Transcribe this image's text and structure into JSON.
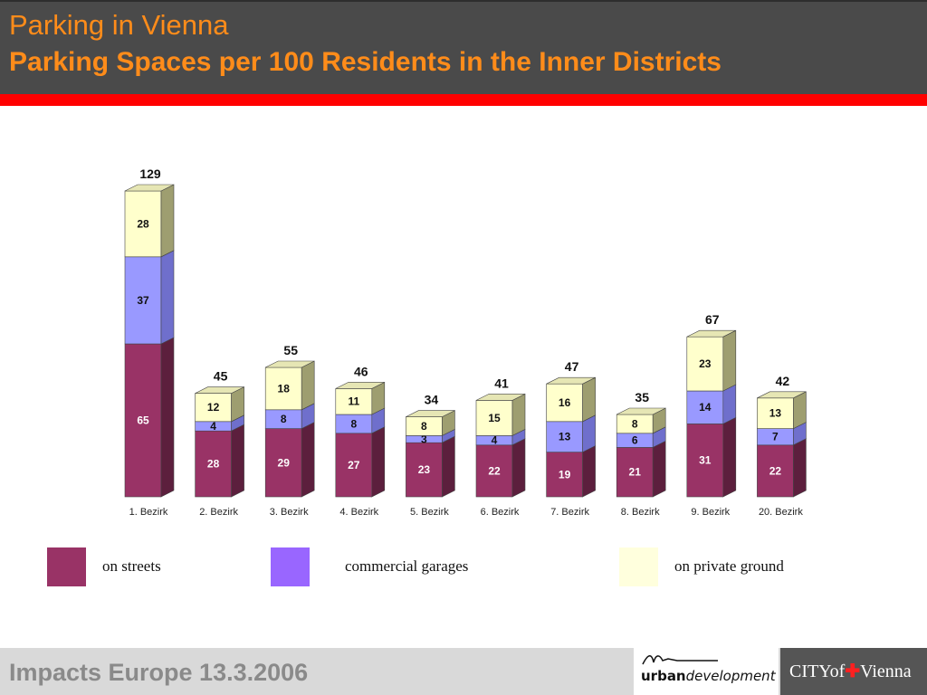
{
  "header": {
    "title": "Parking in Vienna",
    "subtitle": "Parking Spaces per 100 Residents in the Inner Districts"
  },
  "chart_data": {
    "type": "bar",
    "stacked": true,
    "title": "Parking Spaces per 100 Residents in the Inner Districts",
    "categories": [
      "1. Bezirk",
      "2. Bezirk",
      "3. Bezirk",
      "4. Bezirk",
      "5. Bezirk",
      "6. Bezirk",
      "7. Bezirk",
      "8. Bezirk",
      "9. Bezirk",
      "20. Bezirk"
    ],
    "series": [
      {
        "name": "on streets",
        "color": "#993366",
        "values": [
          65,
          28,
          29,
          27,
          23,
          22,
          19,
          21,
          31,
          22
        ]
      },
      {
        "name": "commercial garages",
        "color": "#9999ff",
        "values": [
          37,
          4,
          8,
          8,
          3,
          4,
          13,
          6,
          14,
          7
        ]
      },
      {
        "name": "on private ground",
        "color": "#ffffcc",
        "values": [
          28,
          12,
          18,
          11,
          8,
          15,
          16,
          8,
          23,
          13
        ]
      }
    ],
    "totals": [
      129,
      45,
      55,
      46,
      34,
      41,
      47,
      35,
      67,
      42
    ],
    "ylim": [
      0,
      130
    ],
    "grid": false,
    "legend_position": "bottom"
  },
  "legend": [
    {
      "label": "on streets",
      "color": "#993366"
    },
    {
      "label": "commercial garages",
      "color": "#9966ff"
    },
    {
      "label": "on private ground",
      "color": "#ffffdd"
    }
  ],
  "footer": {
    "text": "Impacts Europe 13.3.2006",
    "urban_logo_strong": "urban",
    "urban_logo_italic": "development",
    "city_logo_pre": "CITYof",
    "city_logo_cross": "✚",
    "city_logo_post": "Vienna"
  }
}
